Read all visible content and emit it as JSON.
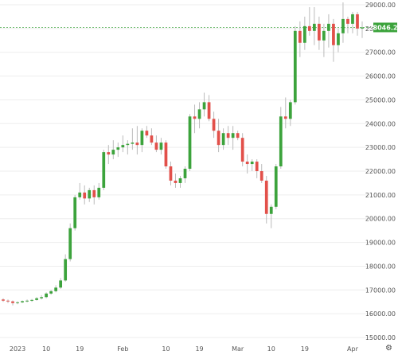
{
  "chart_data": {
    "type": "candlestick",
    "y_axis": {
      "min": 14800,
      "max": 29200,
      "position": "right",
      "ticks": [
        "15000.00",
        "16000.00",
        "17000.00",
        "18000.00",
        "19000.00",
        "20000.00",
        "21000.00",
        "22000.00",
        "23000.00",
        "24000.00",
        "25000.00",
        "26000.00",
        "27000.00",
        "28000.00",
        "29000.00"
      ]
    },
    "x_axis": {
      "labels": [
        {
          "text": "2023",
          "index": 3
        },
        {
          "text": "10",
          "index": 9
        },
        {
          "text": "19",
          "index": 16
        },
        {
          "text": "Feb",
          "index": 25
        },
        {
          "text": "10",
          "index": 34
        },
        {
          "text": "19",
          "index": 41
        },
        {
          "text": "Mar",
          "index": 49
        },
        {
          "text": "10",
          "index": 56
        },
        {
          "text": "19",
          "index": 63
        },
        {
          "text": "Apr",
          "index": 73
        }
      ]
    },
    "last_price": "28046.20",
    "last_price_value": 28046.2,
    "up_color": "#3ca33c",
    "down_color": "#e2504a",
    "candles": [
      [
        16600,
        16650,
        16500,
        16550
      ],
      [
        16550,
        16600,
        16450,
        16520
      ],
      [
        16520,
        16560,
        16350,
        16450
      ],
      [
        16450,
        16520,
        16400,
        16480
      ],
      [
        16480,
        16560,
        16450,
        16530
      ],
      [
        16530,
        16600,
        16480,
        16550
      ],
      [
        16550,
        16620,
        16500,
        16580
      ],
      [
        16580,
        16700,
        16550,
        16650
      ],
      [
        16650,
        16780,
        16600,
        16700
      ],
      [
        16700,
        16900,
        16650,
        16850
      ],
      [
        16850,
        17000,
        16800,
        16950
      ],
      [
        16950,
        17200,
        16900,
        17100
      ],
      [
        17100,
        17500,
        17050,
        17400
      ],
      [
        17400,
        18500,
        17350,
        18300
      ],
      [
        18300,
        19800,
        18200,
        19600
      ],
      [
        19600,
        21000,
        19500,
        20900
      ],
      [
        20900,
        21500,
        20800,
        21100
      ],
      [
        21100,
        21400,
        20600,
        20850
      ],
      [
        20850,
        21300,
        20700,
        21200
      ],
      [
        21200,
        21400,
        20600,
        20900
      ],
      [
        20900,
        21500,
        20800,
        21300
      ],
      [
        21300,
        22900,
        21200,
        22800
      ],
      [
        22800,
        23100,
        22300,
        22700
      ],
      [
        22700,
        23300,
        22500,
        22900
      ],
      [
        22900,
        23200,
        22600,
        23000
      ],
      [
        23000,
        23500,
        22800,
        23100
      ],
      [
        23100,
        23300,
        22700,
        23150
      ],
      [
        23150,
        23800,
        22900,
        23200
      ],
      [
        23200,
        23900,
        22700,
        23100
      ],
      [
        23100,
        23800,
        22800,
        23700
      ],
      [
        23700,
        23900,
        23400,
        23500
      ],
      [
        23500,
        23800,
        23100,
        23200
      ],
      [
        23200,
        23500,
        22800,
        22900
      ],
      [
        22900,
        23400,
        22700,
        23200
      ],
      [
        23200,
        23300,
        22100,
        22200
      ],
      [
        22200,
        22400,
        21400,
        21600
      ],
      [
        21600,
        21900,
        21300,
        21500
      ],
      [
        21500,
        21800,
        21300,
        21700
      ],
      [
        21700,
        22200,
        21500,
        22100
      ],
      [
        22100,
        24400,
        22000,
        24300
      ],
      [
        24300,
        24800,
        23600,
        24200
      ],
      [
        24200,
        24900,
        23800,
        24600
      ],
      [
        24600,
        25300,
        24300,
        24900
      ],
      [
        24900,
        25200,
        24100,
        24200
      ],
      [
        24200,
        24500,
        23400,
        23700
      ],
      [
        23700,
        24200,
        22800,
        23100
      ],
      [
        23100,
        23800,
        22900,
        23600
      ],
      [
        23600,
        23900,
        23100,
        23400
      ],
      [
        23400,
        23900,
        22900,
        23600
      ],
      [
        23600,
        23700,
        23300,
        23400
      ],
      [
        23400,
        23600,
        22200,
        22400
      ],
      [
        22400,
        22700,
        21900,
        22300
      ],
      [
        22300,
        22500,
        22000,
        22400
      ],
      [
        22400,
        22500,
        21700,
        22000
      ],
      [
        22000,
        22300,
        21500,
        21600
      ],
      [
        21600,
        21800,
        19800,
        20200
      ],
      [
        20200,
        20600,
        19600,
        20500
      ],
      [
        20500,
        22300,
        20400,
        22200
      ],
      [
        22200,
        24700,
        22100,
        24300
      ],
      [
        24300,
        25100,
        23800,
        24200
      ],
      [
        24200,
        25000,
        23900,
        24900
      ],
      [
        24900,
        28100,
        24800,
        27900
      ],
      [
        27900,
        28300,
        26800,
        27400
      ],
      [
        27400,
        28500,
        27100,
        28100
      ],
      [
        28100,
        28900,
        27700,
        27900
      ],
      [
        27900,
        28900,
        27300,
        28200
      ],
      [
        28200,
        28500,
        27100,
        27500
      ],
      [
        27500,
        28200,
        26800,
        27900
      ],
      [
        27900,
        28600,
        27200,
        28200
      ],
      [
        28200,
        28400,
        26600,
        27300
      ],
      [
        27300,
        28000,
        27000,
        27800
      ],
      [
        27800,
        29100,
        27400,
        28400
      ],
      [
        28400,
        28500,
        27800,
        28200
      ],
      [
        28200,
        28700,
        27800,
        28600
      ],
      [
        28600,
        28700,
        27700,
        28000
      ],
      [
        28000,
        28300,
        27600,
        28046
      ]
    ]
  }
}
